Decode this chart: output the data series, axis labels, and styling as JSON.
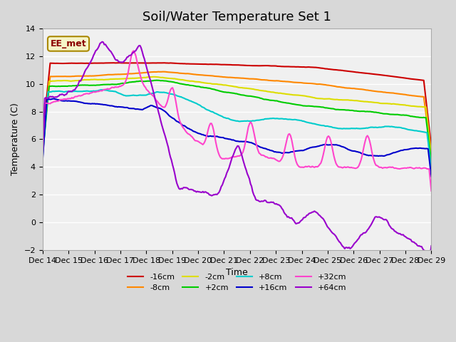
{
  "title": "Soil/Water Temperature Set 1",
  "xlabel": "Time",
  "ylabel": "Temperature (C)",
  "ylim": [
    -2,
    14
  ],
  "yticks": [
    -2,
    0,
    2,
    4,
    6,
    8,
    10,
    12,
    14
  ],
  "annotation_text": "EE_met",
  "series": [
    {
      "label": "-16cm",
      "color": "#cc0000"
    },
    {
      "label": "-8cm",
      "color": "#ff8800"
    },
    {
      "label": "-2cm",
      "color": "#dddd00"
    },
    {
      "label": "+2cm",
      "color": "#00cc00"
    },
    {
      "label": "+8cm",
      "color": "#00cccc"
    },
    {
      "label": "+16cm",
      "color": "#0000cc"
    },
    {
      "label": "+32cm",
      "color": "#ff44cc"
    },
    {
      "label": "+64cm",
      "color": "#9900cc"
    }
  ],
  "xtick_labels": [
    "Dec 14",
    "Dec 15",
    "Dec 16",
    "Dec 17",
    "Dec 18",
    "Dec 19",
    "Dec 20",
    "Dec 21",
    "Dec 22",
    "Dec 23",
    "Dec 24",
    "Dec 25",
    "Dec 26",
    "Dec 27",
    "Dec 28",
    "Dec 29"
  ],
  "title_fontsize": 13,
  "axis_fontsize": 9,
  "tick_fontsize": 8,
  "legend_fontsize": 8
}
